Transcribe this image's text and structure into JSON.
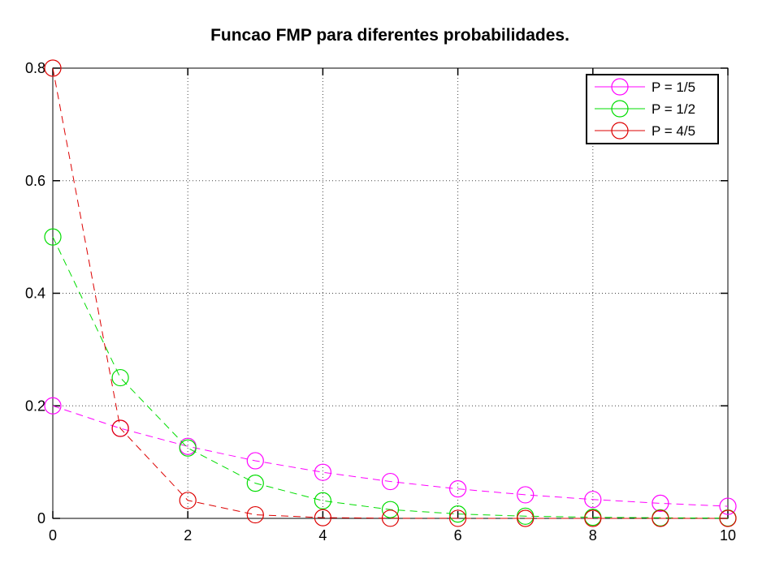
{
  "chart_data": {
    "type": "line",
    "title": "Funcao FMP para diferentes probabilidades.",
    "xlabel": "",
    "ylabel": "",
    "xlim": [
      0,
      10
    ],
    "ylim": [
      0,
      0.8
    ],
    "xticks": [
      0,
      2,
      4,
      6,
      8,
      10
    ],
    "xtick_labels": [
      "0",
      "2",
      "4",
      "6",
      "8",
      "10"
    ],
    "yticks": [
      0,
      0.2,
      0.4,
      0.6,
      0.8
    ],
    "ytick_labels": [
      "0",
      "0.2",
      "0.4",
      "0.6",
      "0.8"
    ],
    "grid": true,
    "legend_position": "top-right",
    "x": [
      0,
      1,
      2,
      3,
      4,
      5,
      6,
      7,
      8,
      9,
      10
    ],
    "series": [
      {
        "name": "P = 1/5",
        "color": "#ff00ff",
        "marker": "circle",
        "linestyle": "dashed",
        "values": [
          0.2,
          0.16,
          0.128,
          0.1024,
          0.0819,
          0.0655,
          0.0524,
          0.0419,
          0.0336,
          0.0268,
          0.0215
        ]
      },
      {
        "name": "P = 1/2",
        "color": "#00dd00",
        "marker": "circle",
        "linestyle": "dashed",
        "values": [
          0.5,
          0.25,
          0.125,
          0.0625,
          0.0313,
          0.0156,
          0.0078,
          0.0039,
          0.002,
          0.001,
          0.0005
        ]
      },
      {
        "name": "P = 4/5",
        "color": "#dd0000",
        "marker": "circle",
        "linestyle": "dashed",
        "values": [
          0.8,
          0.16,
          0.032,
          0.0064,
          0.0013,
          0.0003,
          0.0001,
          0.0,
          0.0,
          0.0,
          0.0
        ]
      }
    ]
  }
}
